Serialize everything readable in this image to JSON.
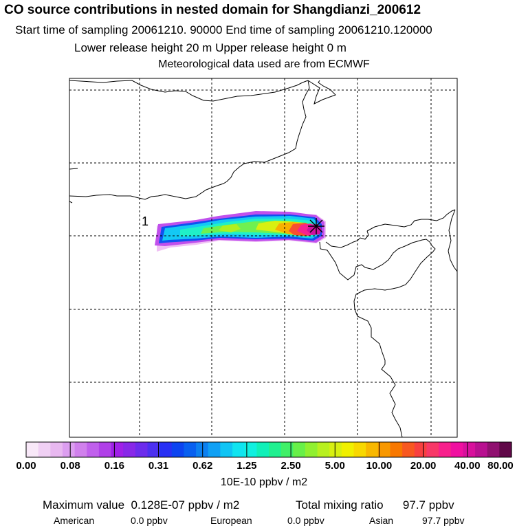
{
  "header": {
    "title": "CO  source contributions in nested domain for Shangdianzi_200612",
    "sampling_line": "Start time of sampling 20061210. 90000     End time of sampling 20061210.120000",
    "release_line": "Lower release height   20 m          Upper release height    0 m",
    "met_line": "Meteorological data used are from ECMWF"
  },
  "map": {
    "plume_label": "1",
    "receptor_marker": "asterisk"
  },
  "colorbar": {
    "colors": [
      "#f8e8f8",
      "#f0d0f4",
      "#e8b8f0",
      "#dc9ef0",
      "#d080ec",
      "#c060ec",
      "#b040e8",
      "#a020e8",
      "#8828e8",
      "#6c2cec",
      "#4c30f0",
      "#2830f4",
      "#0c44f0",
      "#0860f0",
      "#0c80f0",
      "#10a0f4",
      "#10c4f4",
      "#10e4f0",
      "#10f0e0",
      "#10f0b8",
      "#20f090",
      "#40f068",
      "#68f048",
      "#90f030",
      "#b8f020",
      "#d8f010",
      "#f0f000",
      "#f8d800",
      "#f8b800",
      "#f89800",
      "#f87800",
      "#f85820",
      "#f84040",
      "#f83868",
      "#f8208c",
      "#f010a0",
      "#d8109c",
      "#b81090",
      "#901070",
      "#600848"
    ],
    "tick_labels": [
      "0.00",
      "0.08",
      "0.16",
      "0.31",
      "0.62",
      "1.25",
      "2.50",
      "5.00",
      "10.00",
      "20.00",
      "40.00",
      "80.00"
    ],
    "unit": "10E-10 ppbv / m2"
  },
  "stats": {
    "max_label": "Maximum value",
    "max_value": "0.128E-07 ppbv / m2",
    "total_label": "Total mixing ratio",
    "total_value": "97.7 ppbv",
    "regions": [
      {
        "name": "American",
        "value": "0.0 ppbv"
      },
      {
        "name": "European",
        "value": "0.0 ppbv"
      },
      {
        "name": "Asian",
        "value": "97.7 ppbv"
      }
    ]
  }
}
